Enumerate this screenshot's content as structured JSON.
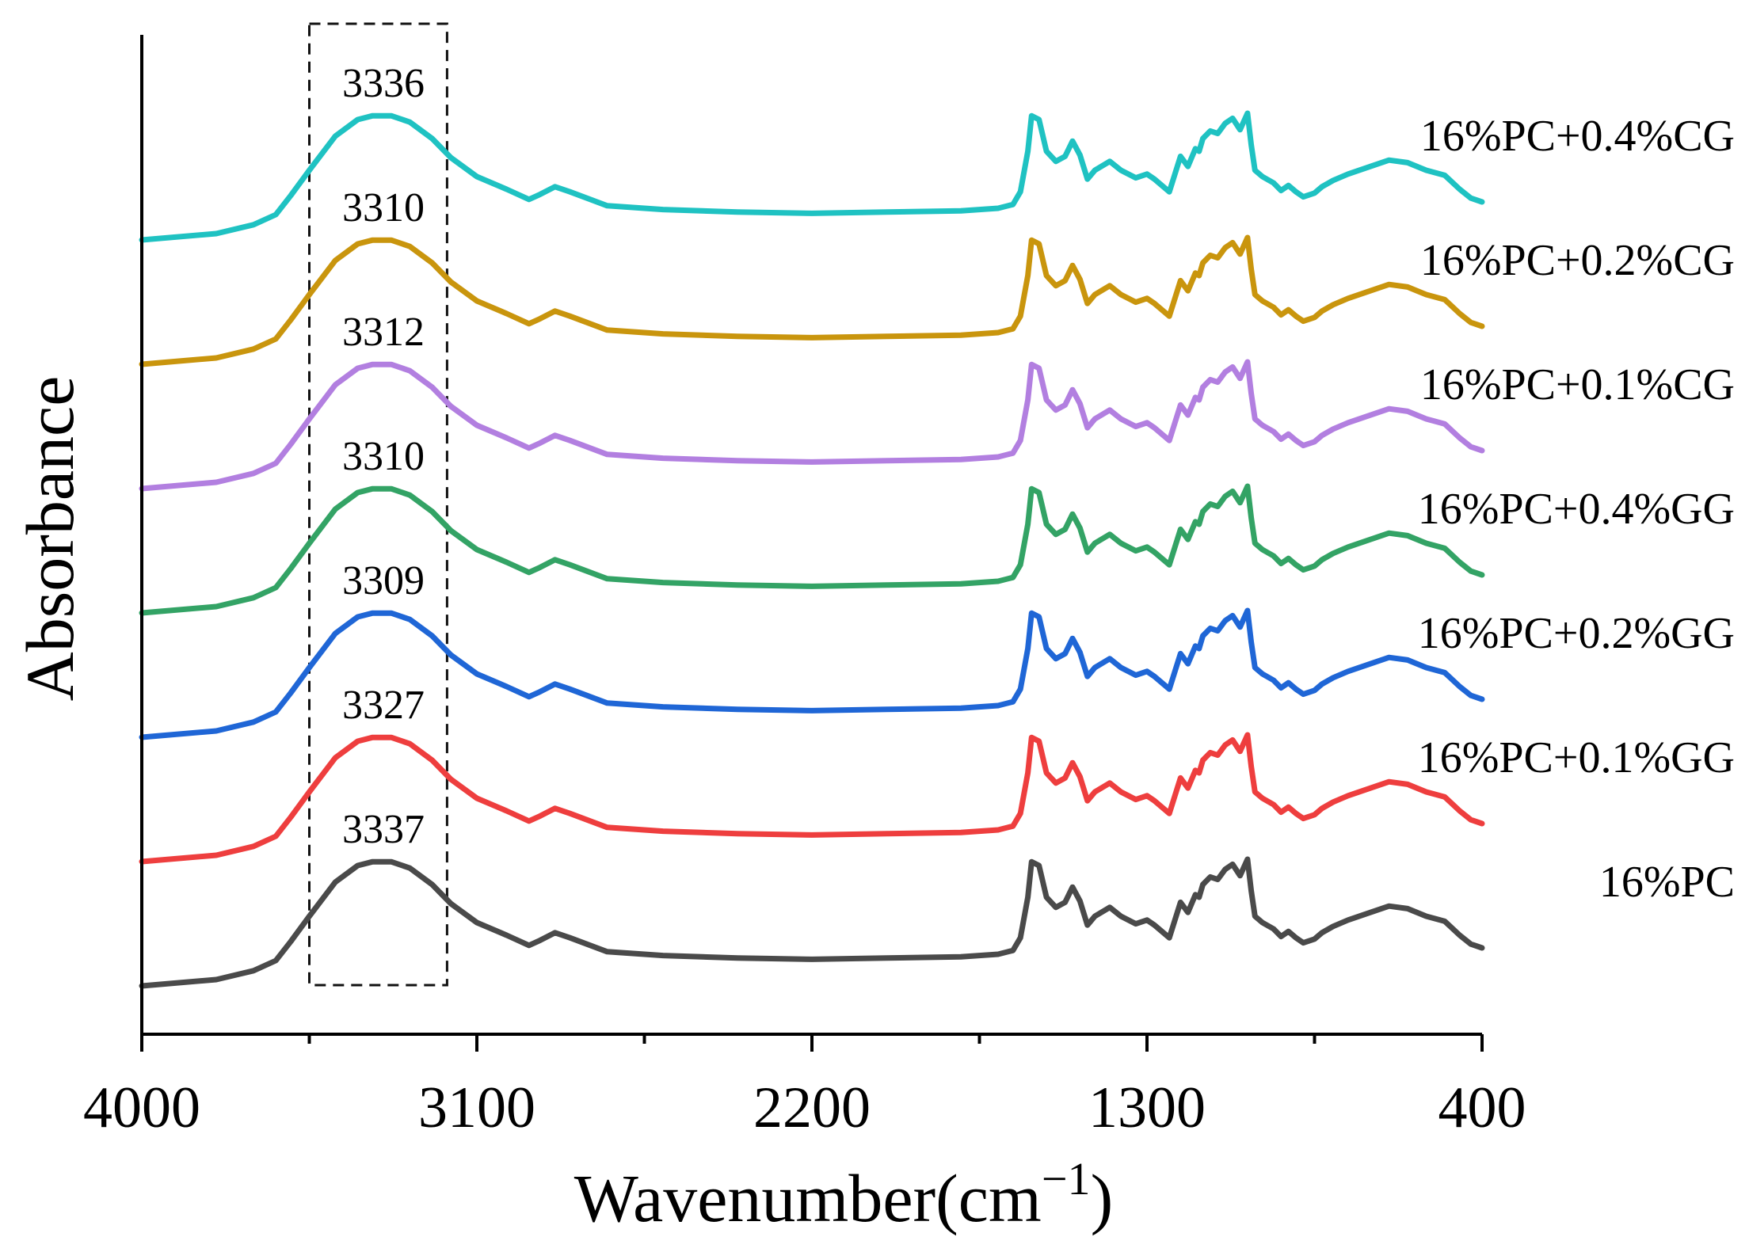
{
  "chart_data": {
    "type": "line",
    "title": "",
    "xlabel": "Wavenumber(cm",
    "xlabel_sup": "−1",
    "xlabel_close": ")",
    "ylabel": "Absorbance",
    "xlim": [
      4000,
      400
    ],
    "x_ticks": [
      4000,
      3100,
      2200,
      1300,
      400
    ],
    "y_ticks_shown": false,
    "grid": false,
    "highlight_region": {
      "x_from": 3550,
      "x_to": 3180,
      "style": "dashed box"
    },
    "series": [
      {
        "name": "16%PC",
        "color": "#4a4a4a",
        "offset": 0,
        "peak_label": "3337"
      },
      {
        "name": "16%PC+0.1%GG",
        "color": "#ee3e3e",
        "offset": 1,
        "peak_label": "3327"
      },
      {
        "name": "16%PC+0.2%GG",
        "color": "#1f66d6",
        "offset": 2,
        "peak_label": "3309"
      },
      {
        "name": "16%PC+0.4%GG",
        "color": "#33a365",
        "offset": 3,
        "peak_label": "3310"
      },
      {
        "name": "16%PC+0.1%CG",
        "color": "#b27fe0",
        "offset": 4,
        "peak_label": "3312"
      },
      {
        "name": "16%PC+0.2%CG",
        "color": "#c9950d",
        "offset": 5,
        "peak_label": "3310"
      },
      {
        "name": "16%PC+0.4%CG",
        "color": "#1fc2c2",
        "offset": 6,
        "peak_label": "3336"
      }
    ],
    "base_spectrum": {
      "x": [
        4000,
        3800,
        3700,
        3640,
        3600,
        3550,
        3480,
        3420,
        3380,
        3330,
        3280,
        3220,
        3170,
        3100,
        3020,
        2960,
        2930,
        2890,
        2850,
        2750,
        2600,
        2400,
        2200,
        2000,
        1800,
        1700,
        1660,
        1640,
        1620,
        1610,
        1590,
        1570,
        1545,
        1520,
        1500,
        1480,
        1460,
        1440,
        1400,
        1370,
        1330,
        1300,
        1280,
        1240,
        1210,
        1190,
        1170,
        1160,
        1150,
        1130,
        1110,
        1090,
        1070,
        1050,
        1030,
        1020,
        1010,
        990,
        960,
        940,
        920,
        900,
        880,
        850,
        830,
        800,
        760,
        700,
        650,
        600,
        550,
        500,
        460,
        430,
        400
      ],
      "y": [
        0.0,
        0.05,
        0.12,
        0.2,
        0.35,
        0.55,
        0.82,
        0.95,
        0.98,
        0.98,
        0.93,
        0.8,
        0.65,
        0.5,
        0.4,
        0.32,
        0.36,
        0.42,
        0.38,
        0.27,
        0.24,
        0.22,
        0.21,
        0.22,
        0.23,
        0.25,
        0.28,
        0.38,
        0.7,
        0.98,
        0.95,
        0.7,
        0.62,
        0.66,
        0.78,
        0.67,
        0.48,
        0.55,
        0.62,
        0.55,
        0.49,
        0.52,
        0.48,
        0.38,
        0.66,
        0.58,
        0.72,
        0.7,
        0.8,
        0.86,
        0.84,
        0.92,
        0.96,
        0.87,
        1.0,
        0.75,
        0.55,
        0.5,
        0.45,
        0.39,
        0.43,
        0.38,
        0.34,
        0.37,
        0.42,
        0.47,
        0.52,
        0.58,
        0.63,
        0.61,
        0.55,
        0.51,
        0.4,
        0.33,
        0.3
      ]
    }
  }
}
